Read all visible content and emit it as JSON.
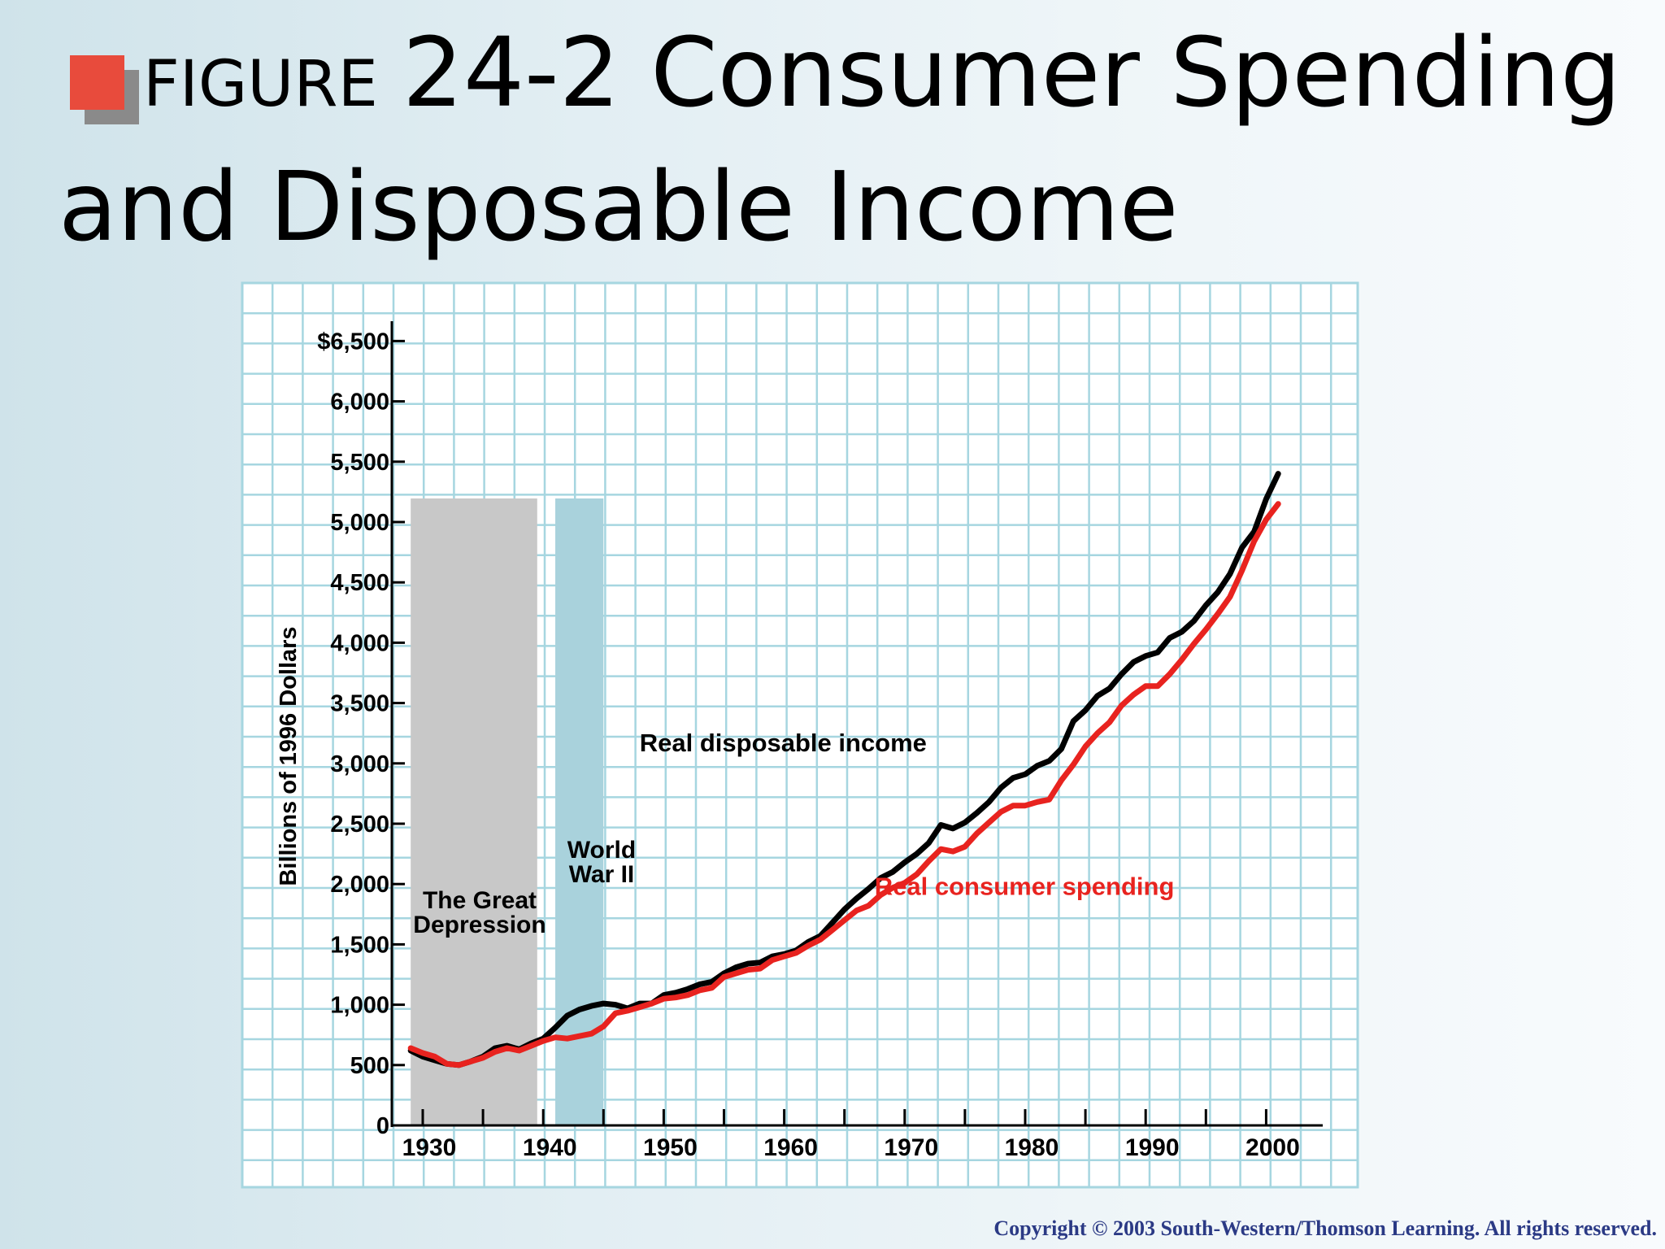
{
  "slide": {
    "title_prefix": "FIGURE",
    "title_main": "24-2 Consumer Spending",
    "title_line2": "and Disposable Income",
    "copyright": "Copyright © 2003 South-Western/Thomson Learning. All rights reserved.",
    "bullet_color": "#e84b3c"
  },
  "chart_data": {
    "type": "line",
    "title": "",
    "xlabel": "",
    "ylabel": "Billions of 1996 Dollars",
    "xlim": [
      1928,
      2005
    ],
    "ylim": [
      0,
      6500
    ],
    "x_ticks": [
      1930,
      1940,
      1950,
      1960,
      1970,
      1980,
      1990,
      2000
    ],
    "x_tick_labels": [
      "1930",
      "1940",
      "1950",
      "1960",
      "1970",
      "1980",
      "1990",
      "2000"
    ],
    "y_ticks": [
      0,
      500,
      1000,
      1500,
      2000,
      2500,
      3000,
      3500,
      4000,
      4500,
      5000,
      5500,
      6000,
      6500
    ],
    "y_tick_labels": [
      "0",
      "500",
      "1,000",
      "1,500",
      "2,000",
      "2,500",
      "3,000",
      "3,500",
      "4,000",
      "4,500",
      "5,000",
      "5,500",
      "6,000",
      "$6,500"
    ],
    "grid": true,
    "legend": "none",
    "shaded_regions": [
      {
        "label_lines": [
          "The Great",
          "Depression"
        ],
        "x_start": 1929,
        "x_end": 1939.5,
        "color": "#c8c8c8"
      },
      {
        "label_lines": [
          "World",
          "War II"
        ],
        "x_start": 1941,
        "x_end": 1945,
        "color": "#a9d2dc"
      }
    ],
    "annotations": [
      {
        "text": "Real disposable income",
        "color": "#000000",
        "x": 1948,
        "y": 3100
      },
      {
        "text": "Real consumer spending",
        "color": "#e8231f",
        "x": 1967.5,
        "y": 1910
      }
    ],
    "series": [
      {
        "name": "Real disposable income",
        "color": "#000000",
        "points": [
          [
            1929,
            620
          ],
          [
            1930,
            570
          ],
          [
            1931,
            540
          ],
          [
            1932,
            510
          ],
          [
            1933,
            500
          ],
          [
            1934,
            530
          ],
          [
            1935,
            570
          ],
          [
            1936,
            640
          ],
          [
            1937,
            660
          ],
          [
            1938,
            630
          ],
          [
            1939,
            680
          ],
          [
            1940,
            720
          ],
          [
            1941,
            810
          ],
          [
            1942,
            910
          ],
          [
            1943,
            960
          ],
          [
            1944,
            990
          ],
          [
            1945,
            1010
          ],
          [
            1946,
            1000
          ],
          [
            1947,
            970
          ],
          [
            1948,
            1010
          ],
          [
            1949,
            1010
          ],
          [
            1950,
            1080
          ],
          [
            1951,
            1100
          ],
          [
            1952,
            1130
          ],
          [
            1953,
            1170
          ],
          [
            1954,
            1190
          ],
          [
            1955,
            1260
          ],
          [
            1956,
            1310
          ],
          [
            1957,
            1340
          ],
          [
            1958,
            1350
          ],
          [
            1959,
            1400
          ],
          [
            1960,
            1420
          ],
          [
            1961,
            1450
          ],
          [
            1962,
            1520
          ],
          [
            1963,
            1570
          ],
          [
            1964,
            1680
          ],
          [
            1965,
            1790
          ],
          [
            1966,
            1880
          ],
          [
            1967,
            1960
          ],
          [
            1968,
            2050
          ],
          [
            1969,
            2100
          ],
          [
            1970,
            2180
          ],
          [
            1971,
            2250
          ],
          [
            1972,
            2340
          ],
          [
            1973,
            2490
          ],
          [
            1974,
            2460
          ],
          [
            1975,
            2510
          ],
          [
            1976,
            2590
          ],
          [
            1977,
            2680
          ],
          [
            1978,
            2800
          ],
          [
            1979,
            2880
          ],
          [
            1980,
            2910
          ],
          [
            1981,
            2980
          ],
          [
            1982,
            3020
          ],
          [
            1983,
            3120
          ],
          [
            1984,
            3350
          ],
          [
            1985,
            3440
          ],
          [
            1986,
            3560
          ],
          [
            1987,
            3620
          ],
          [
            1988,
            3740
          ],
          [
            1989,
            3840
          ],
          [
            1990,
            3890
          ],
          [
            1991,
            3920
          ],
          [
            1992,
            4040
          ],
          [
            1993,
            4090
          ],
          [
            1994,
            4180
          ],
          [
            1995,
            4310
          ],
          [
            1996,
            4420
          ],
          [
            1997,
            4570
          ],
          [
            1998,
            4790
          ],
          [
            1999,
            4920
          ],
          [
            2000,
            5190
          ],
          [
            2001,
            5400
          ]
        ]
      },
      {
        "name": "Real consumer spending",
        "color": "#e8231f",
        "points": [
          [
            1929,
            640
          ],
          [
            1930,
            600
          ],
          [
            1931,
            570
          ],
          [
            1932,
            510
          ],
          [
            1933,
            500
          ],
          [
            1934,
            530
          ],
          [
            1935,
            560
          ],
          [
            1936,
            610
          ],
          [
            1937,
            640
          ],
          [
            1938,
            620
          ],
          [
            1939,
            660
          ],
          [
            1940,
            700
          ],
          [
            1941,
            730
          ],
          [
            1942,
            720
          ],
          [
            1943,
            740
          ],
          [
            1944,
            760
          ],
          [
            1945,
            820
          ],
          [
            1946,
            930
          ],
          [
            1947,
            950
          ],
          [
            1948,
            980
          ],
          [
            1949,
            1010
          ],
          [
            1950,
            1050
          ],
          [
            1951,
            1060
          ],
          [
            1952,
            1080
          ],
          [
            1953,
            1120
          ],
          [
            1954,
            1140
          ],
          [
            1955,
            1230
          ],
          [
            1956,
            1260
          ],
          [
            1957,
            1290
          ],
          [
            1958,
            1300
          ],
          [
            1959,
            1370
          ],
          [
            1960,
            1400
          ],
          [
            1961,
            1430
          ],
          [
            1962,
            1490
          ],
          [
            1963,
            1540
          ],
          [
            1964,
            1620
          ],
          [
            1965,
            1700
          ],
          [
            1966,
            1780
          ],
          [
            1967,
            1820
          ],
          [
            1968,
            1910
          ],
          [
            1969,
            1970
          ],
          [
            1970,
            2010
          ],
          [
            1971,
            2080
          ],
          [
            1972,
            2190
          ],
          [
            1973,
            2290
          ],
          [
            1974,
            2270
          ],
          [
            1975,
            2310
          ],
          [
            1976,
            2420
          ],
          [
            1977,
            2510
          ],
          [
            1978,
            2600
          ],
          [
            1979,
            2650
          ],
          [
            1980,
            2650
          ],
          [
            1981,
            2680
          ],
          [
            1982,
            2700
          ],
          [
            1983,
            2860
          ],
          [
            1984,
            2990
          ],
          [
            1985,
            3140
          ],
          [
            1986,
            3250
          ],
          [
            1987,
            3340
          ],
          [
            1988,
            3480
          ],
          [
            1989,
            3570
          ],
          [
            1990,
            3640
          ],
          [
            1991,
            3640
          ],
          [
            1992,
            3740
          ],
          [
            1993,
            3860
          ],
          [
            1994,
            3990
          ],
          [
            1995,
            4110
          ],
          [
            1996,
            4240
          ],
          [
            1997,
            4380
          ],
          [
            1998,
            4600
          ],
          [
            1999,
            4840
          ],
          [
            2000,
            5020
          ],
          [
            2001,
            5150
          ]
        ]
      }
    ]
  }
}
